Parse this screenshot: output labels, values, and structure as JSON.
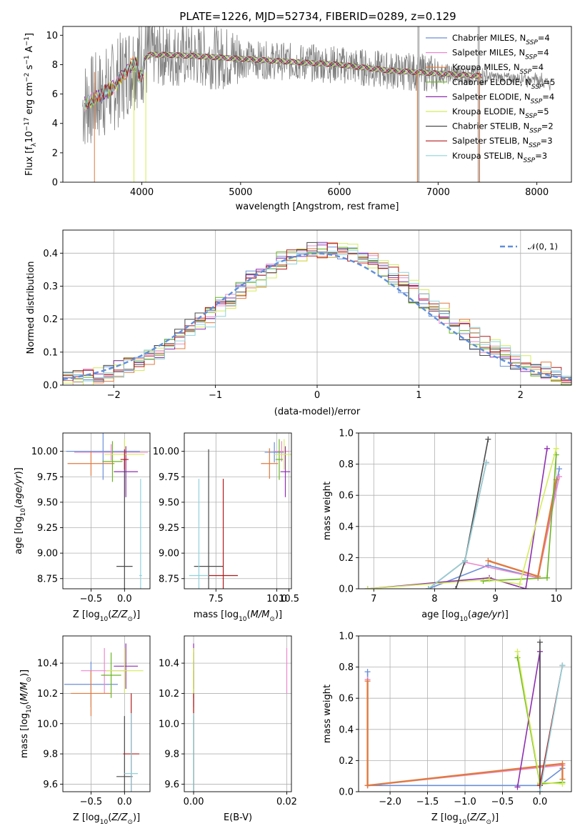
{
  "figure_title": "PLATE=1226, MJD=52734, FIBERID=0289, z=0.129",
  "series": [
    {
      "name": "Chabrier MILES, N_SSP=4",
      "color": "#6a8fd8"
    },
    {
      "name": "Salpeter MILES, N_SSP=4",
      "color": "#ee88cc"
    },
    {
      "name": "Kroupa MILES, N_SSP=4",
      "color": "#e07a3f"
    },
    {
      "name": "Chabrier ELODIE, N_SSP=5",
      "color": "#6ab521"
    },
    {
      "name": "Salpeter ELODIE, N_SSP=4",
      "color": "#8e2fb0"
    },
    {
      "name": "Kroupa ELODIE, N_SSP=5",
      "color": "#d4ec5a"
    },
    {
      "name": "Chabrier STELIB, N_SSP=2",
      "color": "#4a4a4a"
    },
    {
      "name": "Salpeter STELIB, N_SSP=3",
      "color": "#b01a1a"
    },
    {
      "name": "Kroupa STELIB, N_SSP=3",
      "color": "#8fd3dc"
    }
  ],
  "chart_data": [
    {
      "id": "spectrum",
      "type": "line",
      "xlabel": "wavelength [Angstrom, rest frame]",
      "ylabel": "Flux [f_λ10^-17 erg cm^-2 s^-1 A^-1]",
      "xlim": [
        3200,
        8350
      ],
      "ylim": [
        0,
        10.6
      ],
      "xticks": [
        "4000",
        "5000",
        "6000",
        "7000",
        "8000"
      ],
      "yticks": [
        "0",
        "2",
        "4",
        "6",
        "8",
        "10"
      ],
      "data_range": [
        3400,
        8150
      ],
      "continuum": [
        [
          3400,
          5.2
        ],
        [
          3700,
          6.4
        ],
        [
          3900,
          8.0
        ],
        [
          4100,
          8.7
        ],
        [
          4500,
          8.6
        ],
        [
          5000,
          8.4
        ],
        [
          5500,
          8.2
        ],
        [
          6000,
          8.0
        ],
        [
          6500,
          7.6
        ],
        [
          7000,
          7.4
        ],
        [
          7500,
          7.2
        ],
        [
          8000,
          7.0
        ],
        [
          8150,
          6.8
        ]
      ],
      "legend_entries": [
        {
          "label": "Chabrier MILES, N",
          "sub": "SSP",
          "rest": "=4"
        },
        {
          "label": "Salpeter MILES, N",
          "sub": "SSP",
          "rest": "=4"
        },
        {
          "label": "Kroupa MILES, N",
          "sub": "SSP",
          "rest": "=4"
        },
        {
          "label": "Chabrier ELODIE, N",
          "sub": "SSP",
          "rest": "=5"
        },
        {
          "label": "Salpeter ELODIE, N",
          "sub": "SSP",
          "rest": "=4"
        },
        {
          "label": "Kroupa ELODIE, N",
          "sub": "SSP",
          "rest": "=5"
        },
        {
          "label": "Chabrier STELIB, N",
          "sub": "SSP",
          "rest": "=2"
        },
        {
          "label": "Salpeter STELIB, N",
          "sub": "SSP",
          "rest": "=3"
        },
        {
          "label": "Kroupa STELIB, N",
          "sub": "SSP",
          "rest": "=3"
        }
      ]
    },
    {
      "id": "residual_hist",
      "type": "line",
      "xlabel": "(data-model)/error",
      "ylabel": "Normed distribution",
      "xlim": [
        -2.5,
        2.5
      ],
      "ylim": [
        0,
        0.47
      ],
      "xticks": [
        "−2",
        "−1",
        "0",
        "1",
        "2"
      ],
      "yticks": [
        "0.0",
        "0.1",
        "0.2",
        "0.3",
        "0.4"
      ],
      "legend": "𝒩(0, 1)",
      "bin_width": 0.1
    },
    {
      "id": "age_Z",
      "type": "scatter",
      "xlabel": "Z [log10(Z/Z⊙)]",
      "ylabel": "age [log10(age/yr)]",
      "xlim": [
        -0.92,
        0.38
      ],
      "ylim": [
        8.65,
        10.18
      ],
      "xticks": [
        "−0.5",
        "0.0"
      ],
      "yticks": [
        "8.75",
        "9.00",
        "9.25",
        "9.50",
        "9.75",
        "10.00"
      ],
      "points": [
        {
          "s": 0,
          "x": -0.32,
          "xe": 0.55,
          "y": 10.0,
          "ye": 0.28
        },
        {
          "s": 1,
          "x": -0.2,
          "xe": 0.55,
          "y": 9.99,
          "ye": 0.08
        },
        {
          "s": 2,
          "x": -0.5,
          "xe": 0.35,
          "y": 9.88,
          "ye": 0.12
        },
        {
          "s": 3,
          "x": -0.18,
          "xe": 0.15,
          "y": 9.9,
          "ye": 0.2
        },
        {
          "s": 4,
          "x": 0.02,
          "xe": 0.18,
          "y": 9.8,
          "ye": 0.25
        },
        {
          "s": 5,
          "x": 0.0,
          "xe": 0.3,
          "y": 9.97,
          "ye": 0.15
        },
        {
          "s": 6,
          "x": 0.0,
          "xe": 0.12,
          "y": 8.87,
          "ye": 1.05
        },
        {
          "s": 7,
          "x": 0.0,
          "xe": 0.06,
          "y": 9.92,
          "ye": 0.1
        },
        {
          "s": 8,
          "x": 0.24,
          "xe": 0.02,
          "y": 8.78,
          "ye": 0.95
        }
      ]
    },
    {
      "id": "age_mass",
      "type": "scatter",
      "xlabel": "mass [log10(M/M⊙)]",
      "ylabel": "",
      "xlim": [
        6.2,
        10.6
      ],
      "ylim": [
        8.65,
        10.18
      ],
      "xticks": [
        "7.5",
        "10.0",
        "10.5"
      ],
      "yticks": [
        "8.75",
        "9.00",
        "9.25",
        "9.50",
        "9.75",
        "10.00"
      ],
      "points": [
        {
          "s": 0,
          "x": 9.9,
          "xe": 0.4,
          "y": 9.99,
          "ye": 0.1
        },
        {
          "s": 1,
          "x": 10.2,
          "xe": 0.3,
          "y": 10.0,
          "ye": 0.1
        },
        {
          "s": 2,
          "x": 9.7,
          "xe": 0.35,
          "y": 9.88,
          "ye": 0.15
        },
        {
          "s": 3,
          "x": 10.1,
          "xe": 0.15,
          "y": 9.92,
          "ye": 0.2
        },
        {
          "s": 4,
          "x": 10.35,
          "xe": 0.2,
          "y": 9.8,
          "ye": 0.25
        },
        {
          "s": 5,
          "x": 10.3,
          "xe": 0.4,
          "y": 9.97,
          "ye": 0.15
        },
        {
          "s": 6,
          "x": 7.2,
          "xe": 0.6,
          "y": 8.87,
          "ye": 1.15
        },
        {
          "s": 7,
          "x": 7.8,
          "xe": 0.6,
          "y": 8.78,
          "ye": 0.95
        },
        {
          "s": 8,
          "x": 6.8,
          "xe": 0.4,
          "y": 8.78,
          "ye": 0.95
        }
      ]
    },
    {
      "id": "mass_weight_age",
      "type": "line",
      "xlabel": "age [log10(age/yr)]",
      "ylabel": "mass weight",
      "xlim": [
        6.75,
        10.25
      ],
      "ylim": [
        0,
        1.0
      ],
      "xticks": [
        "7",
        "8",
        "9",
        "10"
      ],
      "yticks": [
        "0.0",
        "0.2",
        "0.4",
        "0.6",
        "0.8",
        "1.0"
      ],
      "lines": [
        {
          "s": 0,
          "pts": [
            [
              7.9,
              0.0
            ],
            [
              8.88,
              0.15
            ],
            [
              9.7,
              0.07
            ],
            [
              10.05,
              0.77
            ]
          ]
        },
        {
          "s": 1,
          "pts": [
            [
              8.5,
              0.17
            ],
            [
              9.7,
              0.07
            ],
            [
              10.05,
              0.72
            ]
          ]
        },
        {
          "s": 2,
          "pts": [
            [
              8.88,
              0.18
            ],
            [
              9.7,
              0.08
            ],
            [
              10.0,
              0.7
            ]
          ],
          "width": 2.4
        },
        {
          "s": 3,
          "pts": [
            [
              8.8,
              0.05
            ],
            [
              9.85,
              0.07
            ],
            [
              10.0,
              0.86
            ]
          ]
        },
        {
          "s": 4,
          "pts": [
            [
              6.9,
              0.0
            ],
            [
              8.9,
              0.07
            ],
            [
              9.5,
              0.0
            ],
            [
              9.85,
              0.9
            ]
          ]
        },
        {
          "s": 5,
          "pts": [
            [
              6.9,
              0.0
            ],
            [
              8.9,
              0.06
            ],
            [
              9.4,
              0.03
            ],
            [
              10.0,
              0.9
            ]
          ]
        },
        {
          "s": 6,
          "pts": [
            [
              8.35,
              0.0
            ],
            [
              8.5,
              0.18
            ],
            [
              8.88,
              0.96
            ]
          ]
        },
        {
          "s": 7,
          "pts": [
            [
              7.9,
              0.0
            ],
            [
              8.5,
              0.18
            ],
            [
              8.85,
              0.81
            ]
          ]
        },
        {
          "s": 8,
          "pts": [
            [
              7.9,
              0.0
            ],
            [
              8.5,
              0.18
            ],
            [
              8.85,
              0.81
            ]
          ]
        }
      ]
    },
    {
      "id": "mass_Z",
      "type": "scatter",
      "xlabel": "Z [log10(Z/Z⊙)]",
      "ylabel": "mass [log10(M/M⊙)]",
      "xlim": [
        -0.92,
        0.38
      ],
      "ylim": [
        9.55,
        10.58
      ],
      "xticks": [
        "−0.5",
        "0.0"
      ],
      "yticks": [
        "9.6",
        "9.8",
        "10.0",
        "10.2",
        "10.4"
      ],
      "points": [
        {
          "s": 0,
          "x": -0.5,
          "xe": 0.4,
          "y": 10.26,
          "ye": 0.15
        },
        {
          "s": 1,
          "x": -0.3,
          "xe": 0.35,
          "y": 10.35,
          "ye": 0.15
        },
        {
          "s": 2,
          "x": -0.5,
          "xe": 0.3,
          "y": 10.2,
          "ye": 0.15
        },
        {
          "s": 3,
          "x": -0.2,
          "xe": 0.15,
          "y": 10.32,
          "ye": 0.15
        },
        {
          "s": 4,
          "x": 0.02,
          "xe": 0.18,
          "y": 10.38,
          "ye": 0.15
        },
        {
          "s": 5,
          "x": 0.0,
          "xe": 0.28,
          "y": 10.35,
          "ye": 0.15
        },
        {
          "s": 6,
          "x": 0.0,
          "xe": 0.12,
          "y": 9.65,
          "ye": 0.4
        },
        {
          "s": 7,
          "x": 0.1,
          "xe": 0.12,
          "y": 9.8,
          "ye": 0.4
        },
        {
          "s": 8,
          "x": 0.1,
          "xe": 0.1,
          "y": 9.67,
          "ye": 0.4
        }
      ]
    },
    {
      "id": "mass_ebv",
      "type": "scatter",
      "xlabel": "E(B-V)",
      "ylabel": "",
      "xlim": [
        -0.002,
        0.021
      ],
      "ylim": [
        9.55,
        10.58
      ],
      "xticks": [
        "0.00",
        "0.02"
      ],
      "yticks": [
        "9.6",
        "9.8",
        "10.0",
        "10.2",
        "10.4"
      ],
      "points": [
        {
          "s": 0,
          "x": 0.0,
          "y": 10.26,
          "ye": 0.15
        },
        {
          "s": 1,
          "x": 0.0,
          "y": 10.35,
          "ye": 0.15
        },
        {
          "s": 2,
          "x": 0.0,
          "y": 10.2,
          "ye": 0.15
        },
        {
          "s": 3,
          "x": 0.0,
          "y": 10.32,
          "ye": 0.15
        },
        {
          "s": 4,
          "x": 0.0,
          "y": 10.38,
          "ye": 0.15
        },
        {
          "s": 5,
          "x": 0.0,
          "y": 10.35,
          "ye": 0.15
        },
        {
          "s": 6,
          "x": 0.0,
          "y": 9.65,
          "ye": 0.4
        },
        {
          "s": 7,
          "x": 0.0,
          "y": 9.8,
          "ye": 0.4
        },
        {
          "s": 8,
          "x": 0.0,
          "y": 9.67,
          "ye": 0.4
        },
        {
          "s": 1,
          "x": 0.02,
          "y": 10.35,
          "ye": 0.15
        }
      ]
    },
    {
      "id": "mass_weight_Z",
      "type": "line",
      "xlabel": "Z [log10(Z/Z⊙)]",
      "ylabel": "mass weight",
      "xlim": [
        -2.42,
        0.42
      ],
      "ylim": [
        0,
        1.0
      ],
      "xticks": [
        "−2.0",
        "−1.5",
        "−1.0",
        "−0.5",
        "0.0"
      ],
      "yticks": [
        "0.0",
        "0.2",
        "0.4",
        "0.6",
        "0.8",
        "1.0"
      ],
      "lines": [
        {
          "s": 0,
          "pts": [
            [
              -2.3,
              0.77
            ],
            [
              -2.3,
              0.04
            ],
            [
              0.0,
              0.04
            ],
            [
              0.3,
              0.15
            ]
          ]
        },
        {
          "s": 1,
          "pts": [
            [
              -2.3,
              0.72
            ],
            [
              -2.3,
              0.04
            ],
            [
              0.3,
              0.17
            ]
          ]
        },
        {
          "s": 2,
          "pts": [
            [
              -2.3,
              0.71
            ],
            [
              -2.3,
              0.04
            ],
            [
              0.3,
              0.18
            ],
            [
              0.3,
              0.08
            ]
          ],
          "width": 2.4
        },
        {
          "s": 3,
          "pts": [
            [
              -0.3,
              0.86
            ],
            [
              0.0,
              0.05
            ],
            [
              0.3,
              0.06
            ]
          ]
        },
        {
          "s": 4,
          "pts": [
            [
              -0.3,
              0.03
            ],
            [
              0.0,
              0.9
            ],
            [
              0.0,
              0.0
            ]
          ]
        },
        {
          "s": 5,
          "pts": [
            [
              -0.3,
              0.9
            ],
            [
              0.0,
              0.06
            ],
            [
              0.3,
              0.05
            ]
          ]
        },
        {
          "s": 6,
          "pts": [
            [
              0.0,
              0.96
            ],
            [
              0.0,
              0.04
            ]
          ]
        },
        {
          "s": 7,
          "pts": [
            [
              0.0,
              0.04
            ],
            [
              0.3,
              0.81
            ]
          ]
        },
        {
          "s": 8,
          "pts": [
            [
              0.0,
              0.0
            ],
            [
              0.3,
              0.81
            ]
          ]
        }
      ]
    }
  ]
}
